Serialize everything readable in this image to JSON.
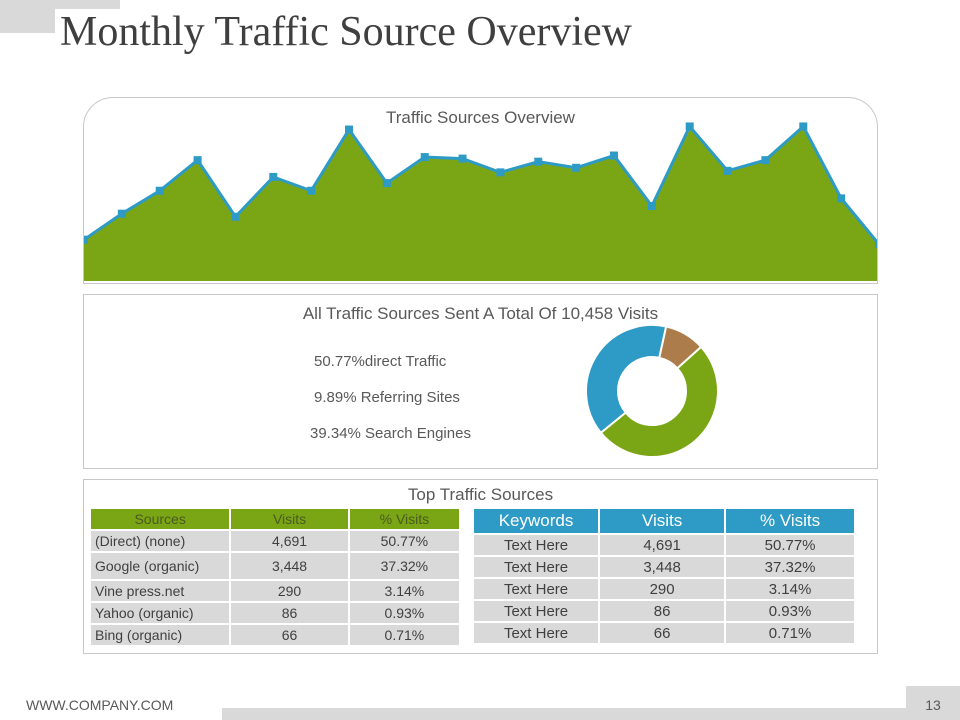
{
  "slide": {
    "title": "Monthly Traffic Source Overview",
    "footer_url": "WWW.COMPANY.COM",
    "page_number": "13"
  },
  "colors": {
    "green": "#7aa615",
    "blue": "#2d9bc6",
    "brown": "#ad7c4b",
    "gray": "#d9d9d9"
  },
  "area_chart": {
    "title": "Traffic Sources Overview",
    "chart_data": {
      "type": "area",
      "title": "Traffic Sources Overview",
      "xlabel": "",
      "ylabel": "",
      "ylim": [
        0,
        100
      ],
      "grid": false,
      "legend": "none",
      "series": [
        {
          "values": [
            27,
            44,
            59,
            79,
            42,
            68,
            59,
            99,
            64,
            81,
            80,
            71,
            78,
            74,
            82,
            49,
            101,
            72,
            79,
            101,
            54,
            24
          ]
        }
      ]
    }
  },
  "donut_chart": {
    "title": "All Traffic Sources Sent A Total Of 10,458 Visits",
    "legend": [
      "50.77%direct Traffic",
      "9.89% Referring Sites",
      "39.34% Search Engines"
    ],
    "chart_data": {
      "type": "pie",
      "title": "All Traffic Sources Sent A Total Of 10,458 Visits",
      "categories": [
        "direct Traffic",
        "Referring Sites",
        "Search Engines"
      ],
      "values": [
        50.77,
        9.89,
        39.34
      ],
      "legend": "left"
    }
  },
  "tables": {
    "title": "Top Traffic Sources",
    "sources": {
      "headers": [
        "Sources",
        "Visits",
        "% Visits"
      ],
      "rows": [
        [
          "(Direct) (none)",
          "4,691",
          "50.77%"
        ],
        [
          "Google (organic)",
          "3,448",
          "37.32%"
        ],
        [
          "Vine press.net",
          "290",
          "3.14%"
        ],
        [
          "Yahoo (organic)",
          "86",
          "0.93%"
        ],
        [
          "Bing (organic)",
          "66",
          "0.71%"
        ]
      ]
    },
    "keywords": {
      "headers": [
        "Keywords",
        "Visits",
        "% Visits"
      ],
      "rows": [
        [
          "Text Here",
          "4,691",
          "50.77%"
        ],
        [
          "Text Here",
          "3,448",
          "37.32%"
        ],
        [
          "Text Here",
          "290",
          "3.14%"
        ],
        [
          "Text Here",
          "86",
          "0.93%"
        ],
        [
          "Text Here",
          "66",
          "0.71%"
        ]
      ]
    }
  }
}
